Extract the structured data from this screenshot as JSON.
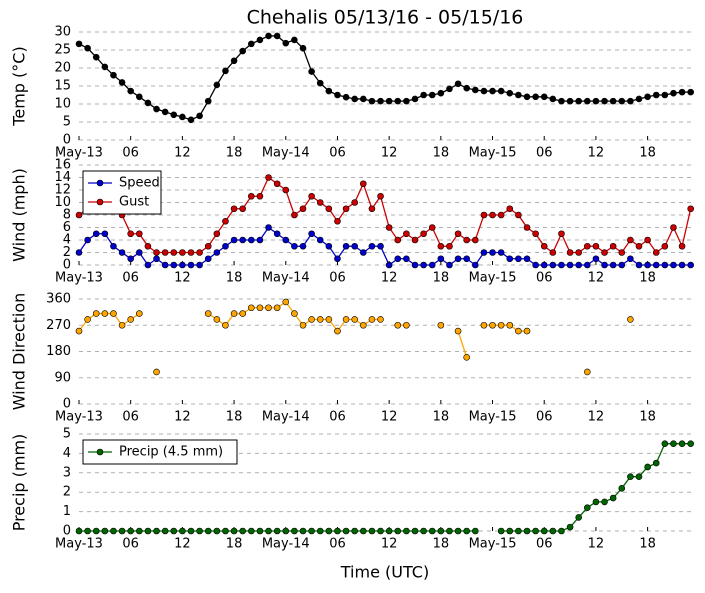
{
  "chart_data": [
    {
      "type": "line",
      "title": "Chehalis 05/13/16 - 05/15/16",
      "ylabel": "Temp (°C)",
      "x": [
        0,
        1,
        2,
        3,
        4,
        5,
        6,
        7,
        8,
        9,
        10,
        11,
        12,
        13,
        14,
        15,
        16,
        17,
        18,
        19,
        20,
        21,
        22,
        23,
        24,
        25,
        26,
        27,
        28,
        29,
        30,
        31,
        32,
        33,
        34,
        35,
        36,
        37,
        38,
        39,
        40,
        41,
        42,
        43,
        44,
        45,
        46,
        47,
        48,
        49,
        50,
        51,
        52,
        53,
        54,
        55,
        56,
        57,
        58,
        59,
        60,
        61,
        62,
        63,
        64,
        65,
        66,
        67,
        68,
        69,
        70,
        71
      ],
      "series": [
        {
          "name": null,
          "color": "#000000",
          "values": [
            26.7,
            25.5,
            23,
            20.3,
            18,
            16,
            13.6,
            12,
            10.3,
            8.6,
            7.8,
            7,
            6.4,
            5.6,
            6.7,
            10.8,
            15.3,
            19.2,
            22,
            24.7,
            26.7,
            27.8,
            28.9,
            28.9,
            26.9,
            27.8,
            25.5,
            19,
            15.8,
            13.6,
            12.5,
            11.9,
            11.4,
            11.4,
            10.8,
            10.8,
            10.8,
            10.8,
            10.8,
            11.4,
            12.5,
            12.5,
            13,
            14.2,
            15.6,
            14.4,
            13.9,
            13.6,
            13.6,
            13.6,
            13,
            12.5,
            12,
            12,
            12,
            11.4,
            10.8,
            10.8,
            10.8,
            10.8,
            10.8,
            10.8,
            10.8,
            10.8,
            10.8,
            11.4,
            12,
            12.5,
            12.5,
            13,
            13.3,
            13.3
          ]
        }
      ],
      "xlim": [
        0,
        71.5
      ],
      "xticks": [
        {
          "value": 0,
          "label": "May-13"
        },
        {
          "value": 6,
          "label": "06"
        },
        12,
        18,
        {
          "value": 24,
          "label": "May-14"
        },
        {
          "value": 30,
          "label": "06"
        },
        {
          "value": 36,
          "label": "12"
        },
        {
          "value": 42,
          "label": "18"
        },
        {
          "value": 48,
          "label": "May-15"
        },
        {
          "value": 54,
          "label": "06"
        },
        {
          "value": 60,
          "label": "12"
        },
        {
          "value": 66,
          "label": "18"
        }
      ],
      "ylim": [
        0,
        30
      ],
      "yticks": [
        0,
        5,
        10,
        15,
        20,
        25,
        30
      ],
      "grid": true
    },
    {
      "type": "line",
      "ylabel": "Wind (mph)",
      "x": [
        0,
        1,
        2,
        3,
        4,
        5,
        6,
        7,
        8,
        9,
        10,
        11,
        12,
        13,
        14,
        15,
        16,
        17,
        18,
        19,
        20,
        21,
        22,
        23,
        24,
        25,
        26,
        27,
        28,
        29,
        30,
        31,
        32,
        33,
        34,
        35,
        36,
        37,
        38,
        39,
        40,
        41,
        42,
        43,
        44,
        45,
        46,
        47,
        48,
        49,
        50,
        51,
        52,
        53,
        54,
        55,
        56,
        57,
        58,
        59,
        60,
        61,
        62,
        63,
        64,
        65,
        66,
        67,
        68,
        69,
        70,
        71
      ],
      "series": [
        {
          "name": "Speed",
          "color": "#0000cc",
          "values": [
            2,
            4,
            5,
            5,
            3,
            2,
            1,
            2,
            0,
            1,
            0,
            0,
            0,
            0,
            0,
            1,
            2,
            3,
            4,
            4,
            4,
            4,
            6,
            5,
            4,
            3,
            3,
            5,
            4,
            3,
            1,
            3,
            3,
            2,
            3,
            3,
            0,
            1,
            1,
            0,
            0,
            0,
            1,
            0,
            1,
            1,
            0,
            2,
            2,
            2,
            1,
            1,
            1,
            0,
            0,
            0,
            0,
            0,
            0,
            0,
            1,
            0,
            0,
            0,
            1,
            0,
            0,
            0,
            0,
            0,
            0,
            0
          ]
        },
        {
          "name": "Gust",
          "color": "#cc0000",
          "values": [
            8,
            9,
            9,
            10,
            9,
            8,
            5,
            5,
            3,
            2,
            2,
            2,
            2,
            2,
            2,
            3,
            5,
            7,
            9,
            9,
            11,
            11,
            14,
            13,
            12,
            8,
            9,
            11,
            10,
            9,
            7,
            9,
            10,
            13,
            9,
            11,
            6,
            4,
            5,
            4,
            5,
            6,
            3,
            3,
            5,
            4,
            4,
            8,
            8,
            8,
            9,
            8,
            6,
            5,
            3,
            2,
            5,
            2,
            2,
            3,
            3,
            2,
            3,
            2,
            4,
            3,
            4,
            2,
            3,
            6,
            3,
            9
          ]
        }
      ],
      "xlim": [
        0,
        71.5
      ],
      "xticks": [
        {
          "value": 0,
          "label": "May-13"
        },
        {
          "value": 6,
          "label": "06"
        },
        12,
        18,
        {
          "value": 24,
          "label": "May-14"
        },
        {
          "value": 30,
          "label": "06"
        },
        {
          "value": 36,
          "label": "12"
        },
        {
          "value": 42,
          "label": "18"
        },
        {
          "value": 48,
          "label": "May-15"
        },
        {
          "value": 54,
          "label": "06"
        },
        {
          "value": 60,
          "label": "12"
        },
        {
          "value": 66,
          "label": "18"
        }
      ],
      "ylim": [
        0,
        16
      ],
      "yticks": [
        0,
        2,
        4,
        6,
        8,
        10,
        12,
        14,
        16
      ],
      "grid": true,
      "legend": "upper left"
    },
    {
      "type": "line",
      "ylabel": "Wind Direction",
      "x": [
        0,
        1,
        2,
        3,
        4,
        5,
        6,
        7,
        8,
        9,
        10,
        11,
        12,
        13,
        14,
        15,
        16,
        17,
        18,
        19,
        20,
        21,
        22,
        23,
        24,
        25,
        26,
        27,
        28,
        29,
        30,
        31,
        32,
        33,
        34,
        35,
        36,
        37,
        38,
        39,
        40,
        41,
        42,
        43,
        44,
        45,
        46,
        47,
        48,
        49,
        50,
        51,
        52,
        53,
        54,
        55,
        56,
        57,
        58,
        59,
        60,
        61,
        62,
        63,
        64,
        65,
        66,
        67,
        68,
        69,
        70,
        71
      ],
      "series": [
        {
          "name": null,
          "color": "#ffa500",
          "values": [
            250,
            290,
            310,
            310,
            310,
            270,
            290,
            310,
            null,
            110,
            null,
            null,
            null,
            null,
            null,
            310,
            290,
            270,
            310,
            310,
            330,
            330,
            330,
            330,
            350,
            310,
            270,
            290,
            290,
            290,
            250,
            290,
            290,
            270,
            290,
            290,
            null,
            270,
            270,
            null,
            null,
            null,
            270,
            null,
            250,
            160,
            null,
            270,
            270,
            270,
            270,
            250,
            250,
            null,
            null,
            null,
            null,
            null,
            null,
            110,
            null,
            null,
            null,
            null,
            290,
            null,
            null,
            null,
            null,
            null,
            null,
            null
          ]
        }
      ],
      "xlim": [
        0,
        71.5
      ],
      "xticks": [
        {
          "value": 0,
          "label": "May-13"
        },
        {
          "value": 6,
          "label": "06"
        },
        12,
        18,
        {
          "value": 24,
          "label": "May-14"
        },
        {
          "value": 30,
          "label": "06"
        },
        {
          "value": 36,
          "label": "12"
        },
        {
          "value": 42,
          "label": "18"
        },
        {
          "value": 48,
          "label": "May-15"
        },
        {
          "value": 54,
          "label": "06"
        },
        {
          "value": 60,
          "label": "12"
        },
        {
          "value": 66,
          "label": "18"
        }
      ],
      "ylim": [
        0,
        360
      ],
      "yticks": [
        0,
        90,
        180,
        270,
        360
      ],
      "grid": true
    },
    {
      "type": "line",
      "ylabel": "Precip (mm)",
      "xlabel": "Time (UTC)",
      "x": [
        0,
        1,
        2,
        3,
        4,
        5,
        6,
        7,
        8,
        9,
        10,
        11,
        12,
        13,
        14,
        15,
        16,
        17,
        18,
        19,
        20,
        21,
        22,
        23,
        24,
        25,
        26,
        27,
        28,
        29,
        30,
        31,
        32,
        33,
        34,
        35,
        36,
        37,
        38,
        39,
        40,
        41,
        42,
        43,
        44,
        45,
        46,
        47,
        48,
        49,
        50,
        51,
        52,
        53,
        54,
        55,
        56,
        57,
        58,
        59,
        60,
        61,
        62,
        63,
        64,
        65,
        66,
        67,
        68,
        69,
        70,
        71
      ],
      "series": [
        {
          "name": "Precip (4.5 mm)",
          "color": "#006400",
          "values": [
            0,
            0,
            0,
            0,
            0,
            0,
            0,
            0,
            0,
            0,
            0,
            0,
            0,
            0,
            0,
            0,
            0,
            0,
            0,
            0,
            0,
            0,
            0,
            0,
            0,
            0,
            0,
            0,
            0,
            0,
            0,
            0,
            0,
            0,
            0,
            0,
            0,
            0,
            0,
            0,
            0,
            0,
            0,
            0,
            0,
            0,
            0,
            null,
            null,
            0,
            0,
            0,
            0,
            0,
            0,
            0,
            0,
            0.2,
            0.7,
            1.2,
            1.5,
            1.5,
            1.7,
            2.2,
            2.8,
            2.8,
            3.3,
            3.5,
            4.5,
            4.5,
            4.5,
            4.5
          ]
        }
      ],
      "xlim": [
        0,
        71.5
      ],
      "xticks": [
        {
          "value": 0,
          "label": "May-13"
        },
        {
          "value": 6,
          "label": "06"
        },
        12,
        18,
        {
          "value": 24,
          "label": "May-14"
        },
        {
          "value": 30,
          "label": "06"
        },
        {
          "value": 36,
          "label": "12"
        },
        {
          "value": 42,
          "label": "18"
        },
        {
          "value": 48,
          "label": "May-15"
        },
        {
          "value": 54,
          "label": "06"
        },
        {
          "value": 60,
          "label": "12"
        },
        {
          "value": 66,
          "label": "18"
        }
      ],
      "ylim": [
        0,
        5
      ],
      "yticks": [
        0,
        1,
        2,
        3,
        4,
        5
      ],
      "grid": true,
      "legend": "upper left"
    }
  ]
}
